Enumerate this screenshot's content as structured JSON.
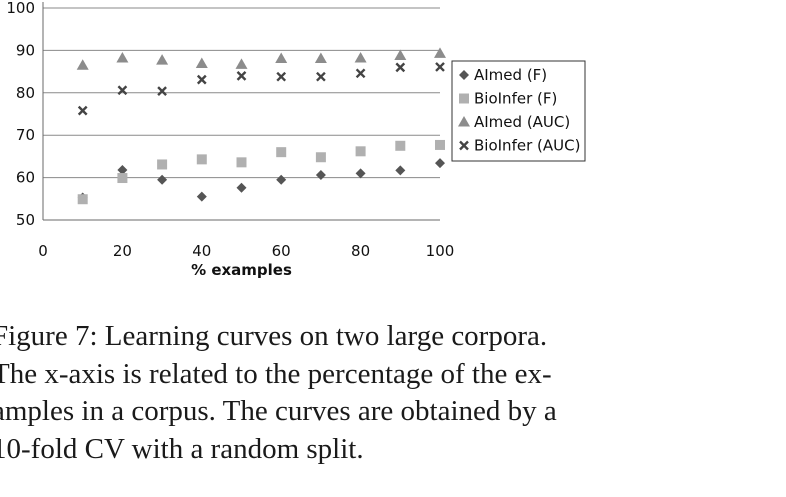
{
  "chart_data": {
    "type": "scatter",
    "xlabel": "% examples",
    "ylabel": "",
    "xlim": [
      0,
      100
    ],
    "ylim": [
      50,
      100
    ],
    "x_ticks": [
      0,
      20,
      40,
      60,
      80,
      100
    ],
    "y_ticks": [
      50,
      60,
      70,
      80,
      90,
      100
    ],
    "grid": "horizontal",
    "legend_position": "right",
    "x": [
      10,
      20,
      30,
      40,
      50,
      60,
      70,
      80,
      90,
      100
    ],
    "series": [
      {
        "name": "AImed (F)",
        "marker": "diamond",
        "color": "#555555",
        "values": [
          55.3,
          61.8,
          59.5,
          55.5,
          57.6,
          59.5,
          60.6,
          61.0,
          61.7,
          63.4
        ]
      },
      {
        "name": "BioInfer (F)",
        "marker": "square",
        "color": "#b0b0b0",
        "values": [
          54.9,
          59.9,
          63.1,
          64.3,
          63.6,
          66.0,
          64.8,
          66.2,
          67.5,
          67.7
        ]
      },
      {
        "name": "AImed (AUC)",
        "marker": "triangle",
        "color": "#8c8c8c",
        "values": [
          86.5,
          88.2,
          87.7,
          86.9,
          86.7,
          88.1,
          88.1,
          88.2,
          88.8,
          89.3
        ]
      },
      {
        "name": "BioInfer (AUC)",
        "marker": "x",
        "color": "#444444",
        "values": [
          75.8,
          80.6,
          80.4,
          83.1,
          84.0,
          83.8,
          83.8,
          84.6,
          86.0,
          86.1
        ]
      }
    ]
  },
  "caption": {
    "lines": [
      "Figure 7:  Learning curves on two large corpora.",
      "The x-axis is related to the percentage of the ex-",
      "amples in a corpus.  The curves are obtained by a",
      "10-fold CV with a random split."
    ]
  }
}
